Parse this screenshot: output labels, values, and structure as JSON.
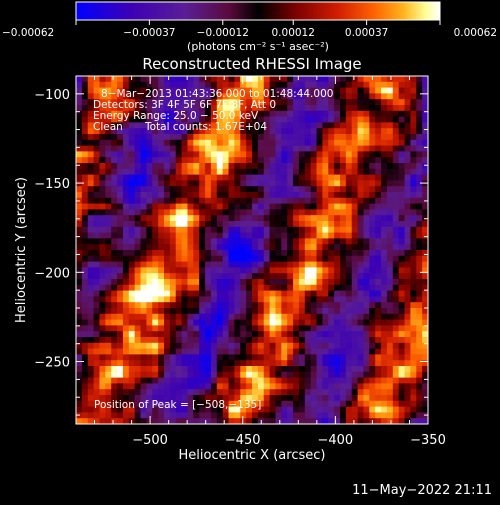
{
  "chart_data": {
    "type": "heatmap",
    "title": "Reconstructed RHESSI Image",
    "xlabel": "Heliocentric X (arcsec)",
    "ylabel": "Heliocentric Y (arcsec)",
    "xlim": [
      -540,
      -350
    ],
    "ylim": [
      -285,
      -90
    ],
    "x_ticks": [
      -500,
      -450,
      -400,
      -350
    ],
    "x_tick_labels": [
      "−500",
      "−450",
      "−400",
      "−350"
    ],
    "y_ticks": [
      -100,
      -150,
      -200,
      -250
    ],
    "y_tick_labels": [
      "−100",
      "−150",
      "−200",
      "−250"
    ],
    "colorbar": {
      "range": [
        -0.00062,
        0.00062
      ],
      "ticks": [
        -0.00062,
        -0.00037,
        -0.00012,
        0.00012,
        0.00037,
        0.00062
      ],
      "tick_labels": [
        "−0.00062",
        "−0.00037",
        "−0.00012",
        "0.00012",
        "0.00037",
        "0.00062"
      ],
      "unit_label": "(photons cm⁻² s⁻¹ asec⁻²)"
    },
    "annotations": {
      "time_range": "8−Mar−2013 01:43:36.000 to 01:48:44.000",
      "detectors": "Detectors: 3F 4F 5F 6F 7F 8F, Att 0",
      "energy_range": "Energy Range: 25.0 − 50.0 keV",
      "algorithm": "Clean",
      "total_counts": "Total counts: 1.67E+04",
      "peak_position": "Position of Peak = [−508,−135]"
    },
    "peak": [
      -508,
      -135
    ],
    "grid": false
  },
  "footer": {
    "timestamp": "11−May−2022 21:11"
  },
  "colors": {
    "background": "#000000",
    "foreground": "#ffffff",
    "colormap": [
      "#0000ff",
      "#3c00b4",
      "#5a1e96",
      "#5a0a3c",
      "#000000",
      "#780000",
      "#d21e00",
      "#ff6400",
      "#ffb41e",
      "#ffff96",
      "#ffffff"
    ]
  }
}
